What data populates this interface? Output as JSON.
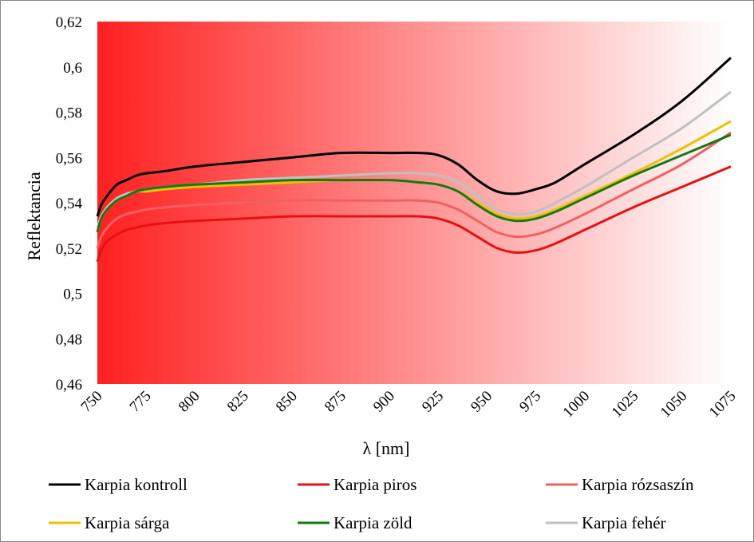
{
  "chart_data": {
    "type": "line",
    "title": "",
    "xlabel": "λ [nm]",
    "ylabel": "Reflektancia",
    "xlim": [
      750,
      1075
    ],
    "ylim": [
      0.46,
      0.62
    ],
    "x_ticks": [
      "750",
      "775",
      "800",
      "825",
      "850",
      "875",
      "900",
      "925",
      "950",
      "975",
      "1000",
      "1025",
      "1050",
      "1075"
    ],
    "y_ticks": [
      "0,46",
      "0,48",
      "0,5",
      "0,52",
      "0,54",
      "0,56",
      "0,58",
      "0,6",
      "0,62"
    ],
    "grid": false,
    "background_gradient": [
      "#ff2020",
      "#ffffff"
    ],
    "legend_position": "bottom",
    "x": [
      750,
      752,
      755,
      760,
      765,
      770,
      775,
      785,
      800,
      825,
      850,
      875,
      900,
      915,
      925,
      935,
      945,
      955,
      965,
      975,
      985,
      1000,
      1025,
      1050,
      1075
    ],
    "series": [
      {
        "name": "Karpia kontroll",
        "color": "#000000",
        "values": [
          0.534,
          0.539,
          0.543,
          0.548,
          0.55,
          0.552,
          0.553,
          0.554,
          0.556,
          0.558,
          0.56,
          0.562,
          0.562,
          0.562,
          0.561,
          0.557,
          0.55,
          0.545,
          0.544,
          0.546,
          0.549,
          0.557,
          0.57,
          0.585,
          0.604
        ]
      },
      {
        "name": "Karpia piros",
        "color": "#e81010",
        "values": [
          0.514,
          0.519,
          0.523,
          0.526,
          0.528,
          0.529,
          0.53,
          0.531,
          0.532,
          0.533,
          0.534,
          0.534,
          0.534,
          0.534,
          0.533,
          0.53,
          0.525,
          0.52,
          0.518,
          0.519,
          0.522,
          0.528,
          0.538,
          0.547,
          0.556
        ]
      },
      {
        "name": "Karpia rózsaszín",
        "color": "#f06060",
        "values": [
          0.52,
          0.525,
          0.529,
          0.533,
          0.535,
          0.536,
          0.537,
          0.538,
          0.539,
          0.54,
          0.541,
          0.541,
          0.541,
          0.541,
          0.54,
          0.537,
          0.532,
          0.527,
          0.525,
          0.526,
          0.529,
          0.535,
          0.546,
          0.557,
          0.571
        ]
      },
      {
        "name": "Karpia sárga",
        "color": "#f0c000",
        "values": [
          0.527,
          0.533,
          0.537,
          0.541,
          0.543,
          0.545,
          0.545,
          0.546,
          0.547,
          0.548,
          0.549,
          0.55,
          0.55,
          0.549,
          0.548,
          0.545,
          0.54,
          0.535,
          0.533,
          0.534,
          0.537,
          0.543,
          0.553,
          0.564,
          0.576
        ]
      },
      {
        "name": "Karpia zöld",
        "color": "#127a12",
        "values": [
          0.527,
          0.533,
          0.537,
          0.541,
          0.543,
          0.545,
          0.546,
          0.547,
          0.548,
          0.549,
          0.55,
          0.55,
          0.55,
          0.549,
          0.548,
          0.545,
          0.539,
          0.534,
          0.532,
          0.533,
          0.536,
          0.542,
          0.552,
          0.561,
          0.57
        ]
      },
      {
        "name": "Karpia fehér",
        "color": "#c0c0c0",
        "values": [
          0.529,
          0.534,
          0.538,
          0.542,
          0.544,
          0.545,
          0.546,
          0.547,
          0.548,
          0.55,
          0.551,
          0.552,
          0.553,
          0.553,
          0.552,
          0.549,
          0.543,
          0.537,
          0.535,
          0.536,
          0.54,
          0.547,
          0.56,
          0.573,
          0.589
        ]
      }
    ]
  }
}
